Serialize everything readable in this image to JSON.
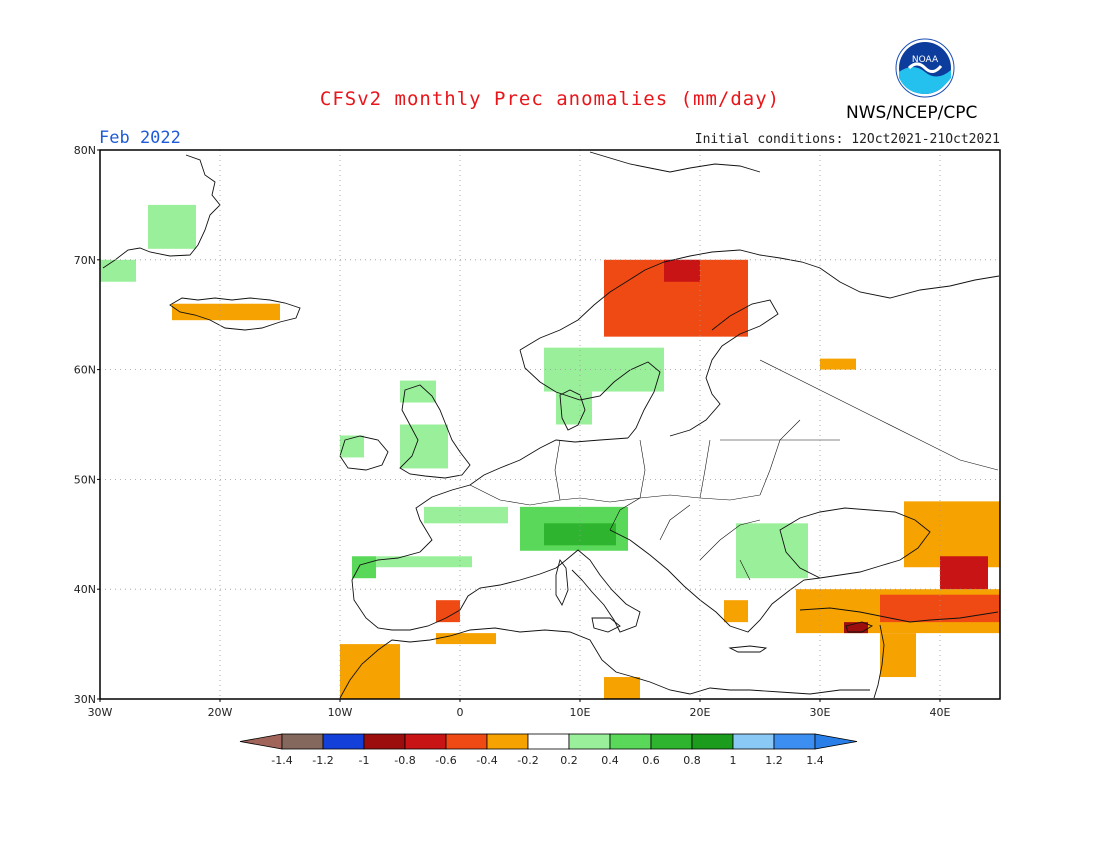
{
  "header": {
    "title": "CFSv2 monthly Prec anomalies (mm/day)",
    "period": "Feb 2022",
    "initial_conditions": "Initial conditions: 12Oct2021-21Oct2021",
    "agency": "NWS/NCEP/CPC",
    "logo_text": "NOAA",
    "logo_icon": "noaa-logo-icon"
  },
  "map": {
    "lon_range": [
      -30,
      45
    ],
    "lat_range": [
      30,
      80
    ],
    "lat_ticks": [
      "30N",
      "40N",
      "50N",
      "60N",
      "70N",
      "80N"
    ],
    "lon_ticks": [
      "30W",
      "20W",
      "10W",
      "0",
      "10E",
      "20E",
      "30E",
      "40E"
    ],
    "grid": "dotted"
  },
  "colorbar": {
    "labels": [
      "-1.4",
      "-1.2",
      "-1",
      "-0.8",
      "-0.6",
      "-0.4",
      "-0.2",
      "0.2",
      "0.4",
      "0.6",
      "0.8",
      "1",
      "1.2",
      "1.4"
    ],
    "colors": [
      "#a0645a",
      "#84685e",
      "#1340d8",
      "#9c0d0d",
      "#c81414",
      "#f04a14",
      "#f6a200",
      "#ffffff",
      "#9af09a",
      "#5ad85a",
      "#2eb42e",
      "#1c9c1c",
      "#8ac8f6",
      "#3c8ef0",
      "#2a7ee8"
    ]
  },
  "anomaly_regions": [
    {
      "name": "greenland-coast-wet",
      "value": 0.3,
      "color": "#9af09a",
      "lon": [
        -26,
        -22
      ],
      "lat": [
        71,
        75
      ]
    },
    {
      "name": "greenland-south-wet",
      "value": 0.3,
      "color": "#9af09a",
      "lon": [
        -30,
        -27
      ],
      "lat": [
        68,
        70
      ]
    },
    {
      "name": "iceland-dry",
      "value": -0.3,
      "color": "#f6a200",
      "lon": [
        -24,
        -15
      ],
      "lat": [
        64.5,
        66
      ]
    },
    {
      "name": "norway-coast-dry",
      "value": -0.5,
      "color": "#f04a14",
      "lon": [
        12,
        24
      ],
      "lat": [
        63,
        70
      ]
    },
    {
      "name": "norway-north-dry",
      "value": -0.7,
      "color": "#c81414",
      "lon": [
        17,
        20
      ],
      "lat": [
        68,
        70
      ]
    },
    {
      "name": "scandinavia-south-wet",
      "value": 0.3,
      "color": "#9af09a",
      "lon": [
        7,
        17
      ],
      "lat": [
        58,
        62
      ]
    },
    {
      "name": "denmark-wet",
      "value": 0.3,
      "color": "#9af09a",
      "lon": [
        8,
        11
      ],
      "lat": [
        55,
        58
      ]
    },
    {
      "name": "ireland-wet",
      "value": 0.3,
      "color": "#9af09a",
      "lon": [
        -10,
        -8
      ],
      "lat": [
        52,
        54
      ]
    },
    {
      "name": "uk-wet",
      "value": 0.3,
      "color": "#9af09a",
      "lon": [
        -5,
        -1
      ],
      "lat": [
        51,
        55
      ]
    },
    {
      "name": "scotland-wet",
      "value": 0.3,
      "color": "#9af09a",
      "lon": [
        -5,
        -2
      ],
      "lat": [
        57,
        59
      ]
    },
    {
      "name": "alps-wet",
      "value": 0.5,
      "color": "#5ad85a",
      "lon": [
        5,
        14
      ],
      "lat": [
        43.5,
        47.5
      ]
    },
    {
      "name": "alps-core-wet",
      "value": 0.7,
      "color": "#2eb42e",
      "lon": [
        7,
        13
      ],
      "lat": [
        44,
        46
      ]
    },
    {
      "name": "france-wet",
      "value": 0.3,
      "color": "#9af09a",
      "lon": [
        -3,
        4
      ],
      "lat": [
        46,
        47.5
      ]
    },
    {
      "name": "balkans-east-wet",
      "value": 0.3,
      "color": "#9af09a",
      "lon": [
        23,
        29
      ],
      "lat": [
        41,
        46
      ]
    },
    {
      "name": "iberia-north-wet",
      "value": 0.4,
      "color": "#5ad85a",
      "lon": [
        -9,
        -7
      ],
      "lat": [
        41,
        43
      ]
    },
    {
      "name": "iberia-north-band-wet",
      "value": 0.3,
      "color": "#9af09a",
      "lon": [
        -7,
        1
      ],
      "lat": [
        42,
        43
      ]
    },
    {
      "name": "spain-east-dry",
      "value": -0.5,
      "color": "#f04a14",
      "lon": [
        -2,
        0
      ],
      "lat": [
        37,
        39
      ]
    },
    {
      "name": "morocco-dry",
      "value": -0.3,
      "color": "#f6a200",
      "lon": [
        -10,
        -5
      ],
      "lat": [
        30,
        35
      ]
    },
    {
      "name": "algeria-dry",
      "value": -0.3,
      "color": "#f6a200",
      "lon": [
        -2,
        3
      ],
      "lat": [
        35,
        36
      ]
    },
    {
      "name": "libya-dry",
      "value": -0.3,
      "color": "#f6a200",
      "lon": [
        12,
        15
      ],
      "lat": [
        30,
        32
      ]
    },
    {
      "name": "turkey-dry",
      "value": -0.3,
      "color": "#f6a200",
      "lon": [
        28,
        45
      ],
      "lat": [
        36,
        40
      ]
    },
    {
      "name": "turkey-east-dry",
      "value": -0.6,
      "color": "#f04a14",
      "lon": [
        35,
        45
      ],
      "lat": [
        37,
        39.5
      ]
    },
    {
      "name": "black-sea-east-dry",
      "value": -0.3,
      "color": "#f6a200",
      "lon": [
        37,
        45
      ],
      "lat": [
        42,
        48
      ]
    },
    {
      "name": "caucasus-dry",
      "value": -0.7,
      "color": "#c81414",
      "lon": [
        40,
        44
      ],
      "lat": [
        40,
        43
      ]
    },
    {
      "name": "levant-dry",
      "value": -0.3,
      "color": "#f6a200",
      "lon": [
        35,
        38
      ],
      "lat": [
        32,
        36
      ]
    },
    {
      "name": "cyprus-area-dry",
      "value": -0.9,
      "color": "#9c0d0d",
      "lon": [
        32,
        34
      ],
      "lat": [
        36,
        37
      ]
    },
    {
      "name": "russia-west-dry",
      "value": -0.3,
      "color": "#f6a200",
      "lon": [
        30,
        33
      ],
      "lat": [
        60,
        61
      ]
    },
    {
      "name": "greece-dry",
      "value": -0.4,
      "color": "#f6a200",
      "lon": [
        22,
        24
      ],
      "lat": [
        37,
        39
      ]
    }
  ]
}
